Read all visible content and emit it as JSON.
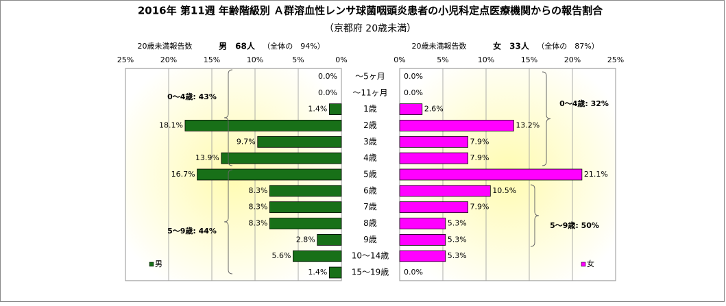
{
  "chart_data": {
    "type": "butterfly",
    "title": "2016年 第11週 年齢階級別 Ａ群溶血性レンサ球菌咽頭炎患者の小児科定点医療機関からの報告割合",
    "subtitle": "（京都府 20歳未満）",
    "categories": [
      "～5ヶ月",
      "～11ヶ月",
      "1歳",
      "2歳",
      "3歳",
      "4歳",
      "5歳",
      "6歳",
      "7歳",
      "8歳",
      "9歳",
      "10～14歳",
      "15～19歳"
    ],
    "xlim": [
      0,
      25
    ],
    "xticks": [
      {
        "value": 0,
        "label": "0%"
      },
      {
        "value": 5,
        "label": "5%"
      },
      {
        "value": 10,
        "label": "10%"
      },
      {
        "value": 15,
        "label": "15%"
      },
      {
        "value": 20,
        "label": "20%"
      },
      {
        "value": 25,
        "label": "25%"
      }
    ],
    "grid": true,
    "series": [
      {
        "name": "男",
        "color": "#187018",
        "side": "left",
        "count_label": "20歳未満報告数",
        "count_text": "男　68人",
        "share_text": "（全体の　94%）",
        "annotations": [
          "0～4歳: 43%",
          "5～9歳: 44%"
        ],
        "values": [
          0,
          0,
          1.4,
          18.1,
          9.7,
          13.9,
          16.7,
          8.3,
          8.3,
          8.3,
          2.8,
          5.6,
          1.4
        ],
        "value_labels": [
          "0.0%",
          "0.0%",
          "1.4%",
          "18.1%",
          "9.7%",
          "13.9%",
          "16.7%",
          "8.3%",
          "8.3%",
          "8.3%",
          "2.8%",
          "5.6%",
          "1.4%"
        ]
      },
      {
        "name": "女",
        "color": "#ff00ff",
        "side": "right",
        "count_label": "20歳未満報告数",
        "count_text": "女　33人",
        "share_text": "（全体の　87%）",
        "annotations": [
          "0～4歳: 32%",
          "5～9歳: 50%"
        ],
        "values": [
          0,
          0,
          2.6,
          13.2,
          7.9,
          7.9,
          21.1,
          10.5,
          7.9,
          5.3,
          5.3,
          5.3,
          0
        ],
        "value_labels": [
          "0.0%",
          "0.0%",
          "2.6%",
          "13.2%",
          "7.9%",
          "7.9%",
          "21.1%",
          "10.5%",
          "7.9%",
          "5.3%",
          "5.3%",
          "5.3%",
          "0.0%"
        ]
      }
    ]
  }
}
